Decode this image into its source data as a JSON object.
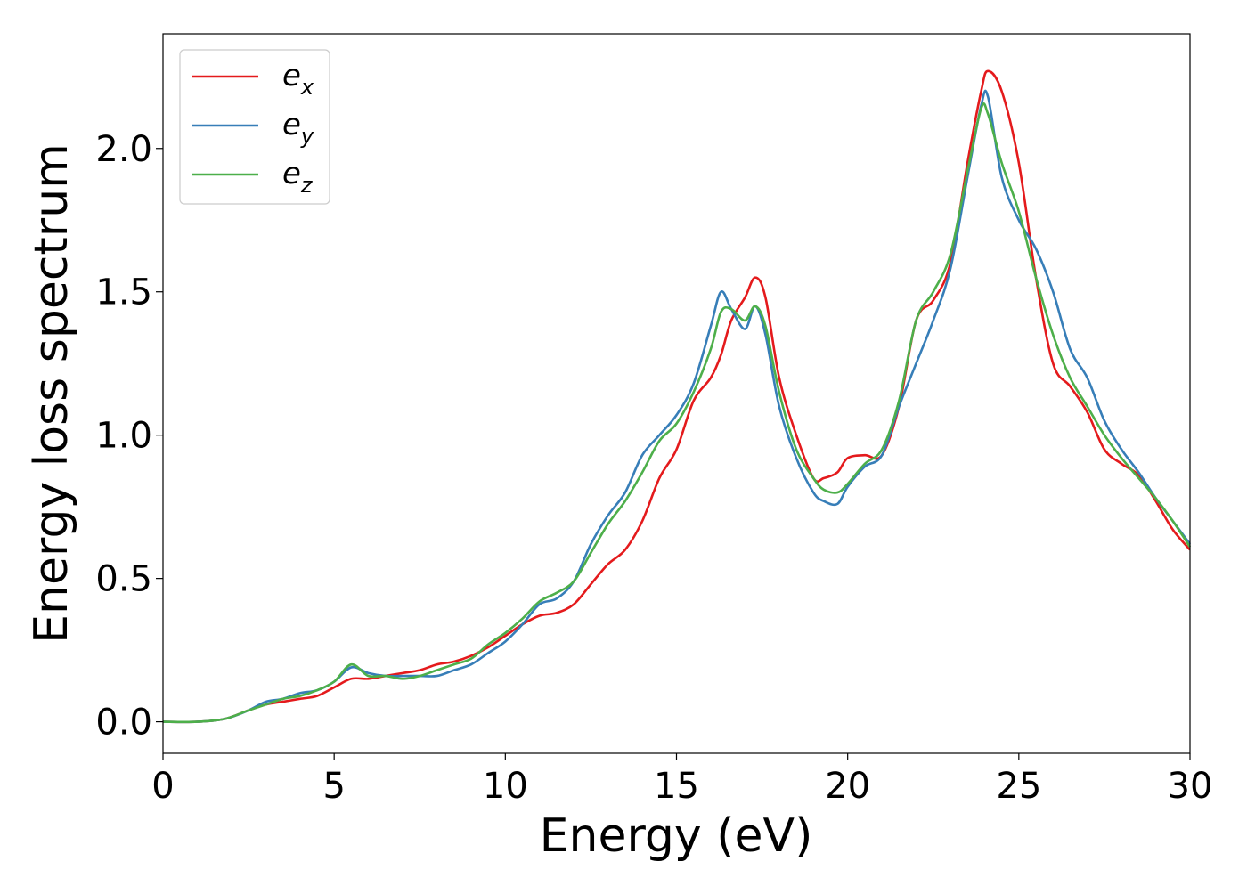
{
  "chart_data": {
    "type": "line",
    "title": "",
    "xlabel": "Energy (eV)",
    "ylabel": "Energy loss spectrum",
    "xlim": [
      0,
      30
    ],
    "ylim": [
      -0.11,
      2.4
    ],
    "xticks": [
      0,
      5,
      10,
      15,
      20,
      25,
      30
    ],
    "xtick_labels": [
      "0",
      "5",
      "10",
      "15",
      "20",
      "25",
      "30"
    ],
    "yticks": [
      0.0,
      0.5,
      1.0,
      1.5,
      2.0
    ],
    "ytick_labels": [
      "0.0",
      "0.5",
      "1.0",
      "1.5",
      "2.0"
    ],
    "grid": false,
    "legend_position": "top-left",
    "x": [
      0,
      1,
      1.8,
      2.5,
      3,
      3.5,
      4,
      4.5,
      5,
      5.5,
      6,
      6.5,
      7,
      7.5,
      8,
      8.5,
      9,
      9.5,
      10,
      10.5,
      11,
      11.5,
      12,
      12.5,
      13,
      13.5,
      14,
      14.5,
      15,
      15.5,
      16,
      16.3,
      16.6,
      17,
      17.3,
      17.6,
      18,
      18.5,
      19,
      19.3,
      19.7,
      20,
      20.5,
      21,
      21.5,
      22,
      22.5,
      23,
      23.5,
      23.9,
      24.1,
      24.5,
      25,
      25.5,
      26,
      26.5,
      27,
      27.5,
      28,
      28.5,
      29,
      29.5,
      30
    ],
    "series": [
      {
        "name": "e",
        "subscript": "x",
        "color": "#e41a1c",
        "values": [
          0.0,
          0.0,
          0.01,
          0.04,
          0.06,
          0.07,
          0.08,
          0.09,
          0.12,
          0.15,
          0.15,
          0.16,
          0.17,
          0.18,
          0.2,
          0.21,
          0.23,
          0.26,
          0.3,
          0.34,
          0.37,
          0.38,
          0.41,
          0.48,
          0.55,
          0.6,
          0.7,
          0.85,
          0.95,
          1.12,
          1.2,
          1.28,
          1.4,
          1.48,
          1.55,
          1.48,
          1.2,
          1.0,
          0.85,
          0.85,
          0.87,
          0.92,
          0.93,
          0.93,
          1.1,
          1.4,
          1.47,
          1.6,
          1.95,
          2.2,
          2.27,
          2.2,
          1.95,
          1.55,
          1.25,
          1.17,
          1.08,
          0.95,
          0.9,
          0.86,
          0.77,
          0.67,
          0.6
        ]
      },
      {
        "name": "e",
        "subscript": "y",
        "color": "#377eb8",
        "values": [
          0.0,
          0.0,
          0.01,
          0.04,
          0.07,
          0.08,
          0.1,
          0.11,
          0.14,
          0.19,
          0.17,
          0.16,
          0.16,
          0.16,
          0.16,
          0.18,
          0.2,
          0.24,
          0.28,
          0.34,
          0.41,
          0.43,
          0.49,
          0.62,
          0.72,
          0.8,
          0.93,
          1.0,
          1.07,
          1.18,
          1.38,
          1.5,
          1.44,
          1.37,
          1.45,
          1.35,
          1.1,
          0.92,
          0.8,
          0.77,
          0.76,
          0.82,
          0.89,
          0.93,
          1.1,
          1.25,
          1.4,
          1.58,
          1.9,
          2.15,
          2.18,
          1.9,
          1.75,
          1.65,
          1.5,
          1.3,
          1.2,
          1.05,
          0.95,
          0.87,
          0.78,
          0.7,
          0.62
        ]
      },
      {
        "name": "e",
        "subscript": "z",
        "color": "#4daf4a",
        "values": [
          0.0,
          0.0,
          0.01,
          0.04,
          0.06,
          0.08,
          0.09,
          0.11,
          0.14,
          0.2,
          0.16,
          0.16,
          0.15,
          0.16,
          0.18,
          0.2,
          0.22,
          0.27,
          0.31,
          0.36,
          0.42,
          0.45,
          0.49,
          0.59,
          0.69,
          0.77,
          0.87,
          0.98,
          1.04,
          1.15,
          1.3,
          1.43,
          1.44,
          1.4,
          1.45,
          1.38,
          1.15,
          0.95,
          0.85,
          0.81,
          0.8,
          0.83,
          0.9,
          0.95,
          1.12,
          1.4,
          1.5,
          1.63,
          1.92,
          2.14,
          2.12,
          1.95,
          1.78,
          1.55,
          1.35,
          1.2,
          1.1,
          1.0,
          0.92,
          0.85,
          0.78,
          0.7,
          0.61
        ]
      }
    ]
  }
}
